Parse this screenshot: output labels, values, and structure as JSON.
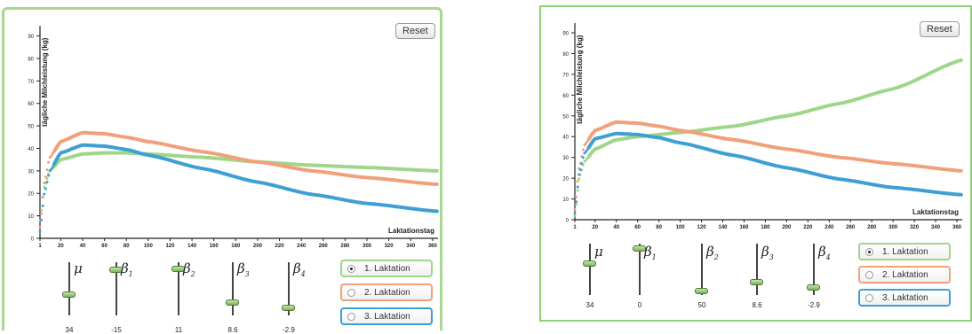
{
  "reset_label": "Reset",
  "colors": {
    "green": "#9fd689",
    "orange": "#f2a07a",
    "blue": "#3d9fd3",
    "axis": "#222222"
  },
  "panels": [
    {
      "chart_data": {
        "type": "line",
        "ylabel": "tägliche Milchleistung (kg)",
        "xlabel": "Laktationstag",
        "xlim": [
          1,
          365
        ],
        "ylim": [
          0,
          93
        ],
        "x_ticks": [
          1,
          20,
          40,
          60,
          80,
          100,
          120,
          140,
          160,
          180,
          200,
          220,
          240,
          260,
          280,
          300,
          320,
          340,
          360
        ],
        "y_ticks": [
          0,
          10,
          20,
          30,
          40,
          50,
          60,
          70,
          80,
          90
        ],
        "series": [
          {
            "color": "green",
            "points": [
              [
                1,
                8
              ],
              [
                5,
                23
              ],
              [
                10,
                30
              ],
              [
                20,
                35
              ],
              [
                40,
                37.5
              ],
              [
                60,
                38
              ],
              [
                80,
                38
              ],
              [
                100,
                37.5
              ],
              [
                150,
                36
              ],
              [
                200,
                34
              ],
              [
                250,
                32.5
              ],
              [
                300,
                31.5
              ],
              [
                365,
                30
              ]
            ]
          },
          {
            "color": "orange",
            "points": [
              [
                1,
                5
              ],
              [
                5,
                25
              ],
              [
                10,
                36
              ],
              [
                20,
                43
              ],
              [
                40,
                47
              ],
              [
                60,
                46.5
              ],
              [
                80,
                45
              ],
              [
                100,
                43
              ],
              [
                150,
                38.5
              ],
              [
                200,
                34
              ],
              [
                250,
                30
              ],
              [
                300,
                27
              ],
              [
                365,
                24
              ]
            ]
          },
          {
            "color": "blue",
            "points": [
              [
                1,
                3
              ],
              [
                5,
                20
              ],
              [
                10,
                30
              ],
              [
                20,
                38
              ],
              [
                40,
                41.5
              ],
              [
                60,
                41
              ],
              [
                80,
                39.5
              ],
              [
                100,
                37
              ],
              [
                150,
                31
              ],
              [
                200,
                25
              ],
              [
                250,
                19.5
              ],
              [
                300,
                15.5
              ],
              [
                365,
                12
              ]
            ]
          }
        ]
      },
      "sliders": [
        {
          "symbol": "μ",
          "sub": "",
          "value": "34",
          "level": 0.38
        },
        {
          "symbol": "β",
          "sub": "1",
          "value": "-15",
          "level": 0.9
        },
        {
          "symbol": "β",
          "sub": "2",
          "value": "11",
          "level": 0.93
        },
        {
          "symbol": "β",
          "sub": "3",
          "value": "8.6",
          "level": 0.2
        },
        {
          "symbol": "β",
          "sub": "4",
          "value": "-2.9",
          "level": 0.1
        }
      ],
      "laktation_buttons": [
        {
          "label": "1. Laktation",
          "color": "green",
          "checked": true
        },
        {
          "label": "2. Laktation",
          "color": "orange",
          "checked": false
        },
        {
          "label": "3. Laktation",
          "color": "blue",
          "checked": false
        }
      ]
    },
    {
      "chart_data": {
        "type": "line",
        "ylabel": "tägliche Milchleistung (kg)",
        "xlabel": "Laktationstag",
        "xlim": [
          1,
          365
        ],
        "ylim": [
          0,
          93
        ],
        "x_ticks": [
          1,
          20,
          40,
          60,
          80,
          100,
          120,
          140,
          160,
          180,
          200,
          220,
          240,
          260,
          280,
          300,
          320,
          340,
          360
        ],
        "y_ticks": [
          0,
          10,
          20,
          30,
          40,
          50,
          60,
          70,
          80,
          90
        ],
        "series": [
          {
            "color": "green",
            "points": [
              [
                1,
                2
              ],
              [
                5,
                20
              ],
              [
                10,
                28
              ],
              [
                20,
                34
              ],
              [
                40,
                38.5
              ],
              [
                60,
                40
              ],
              [
                100,
                42
              ],
              [
                150,
                45
              ],
              [
                200,
                50
              ],
              [
                250,
                56
              ],
              [
                300,
                63
              ],
              [
                365,
                77
              ]
            ]
          },
          {
            "color": "orange",
            "points": [
              [
                1,
                5
              ],
              [
                5,
                25
              ],
              [
                10,
                36
              ],
              [
                20,
                43
              ],
              [
                40,
                47
              ],
              [
                60,
                46.5
              ],
              [
                80,
                45
              ],
              [
                100,
                43
              ],
              [
                150,
                38.5
              ],
              [
                200,
                34
              ],
              [
                250,
                30
              ],
              [
                300,
                27
              ],
              [
                365,
                23.5
              ]
            ]
          },
          {
            "color": "blue",
            "points": [
              [
                1,
                3
              ],
              [
                5,
                22
              ],
              [
                10,
                32
              ],
              [
                20,
                39
              ],
              [
                40,
                41.5
              ],
              [
                60,
                41
              ],
              [
                80,
                39.5
              ],
              [
                100,
                37
              ],
              [
                150,
                31
              ],
              [
                200,
                25
              ],
              [
                250,
                19.5
              ],
              [
                300,
                15.5
              ],
              [
                365,
                12
              ]
            ]
          }
        ]
      },
      "sliders": [
        {
          "symbol": "μ",
          "sub": "",
          "value": "34",
          "level": 0.63
        },
        {
          "symbol": "β",
          "sub": "1",
          "value": "0",
          "level": 0.97
        },
        {
          "symbol": "β",
          "sub": "2",
          "value": "50",
          "level": 0.02
        },
        {
          "symbol": "β",
          "sub": "3",
          "value": "8.6",
          "level": 0.22
        },
        {
          "symbol": "β",
          "sub": "4",
          "value": "-2.9",
          "level": 0.1
        }
      ],
      "laktation_buttons": [
        {
          "label": "1. Laktation",
          "color": "green",
          "checked": true
        },
        {
          "label": "2. Laktation",
          "color": "orange",
          "checked": false
        },
        {
          "label": "3. Laktation",
          "color": "blue",
          "checked": false
        }
      ]
    }
  ]
}
